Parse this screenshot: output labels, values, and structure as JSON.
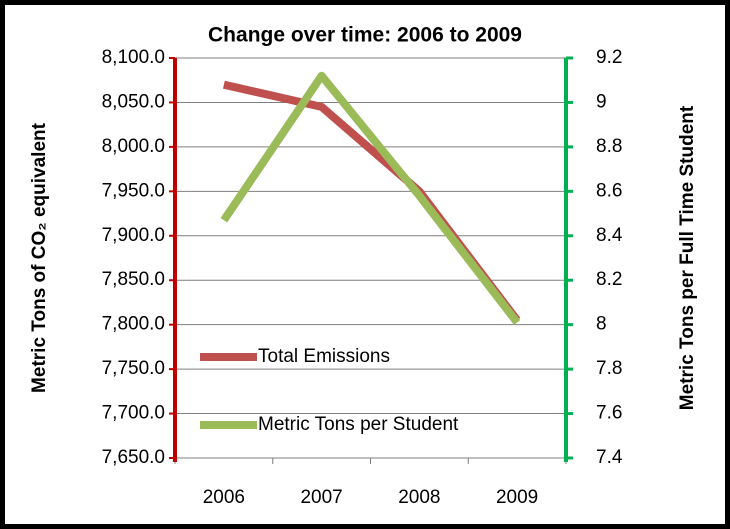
{
  "chart_data": {
    "type": "line",
    "title": "Change over time: 2006 to 2009",
    "y_label": "Metric Tons of CO₂ equivalent",
    "y2_label": "Metric Tons per Full Time Student",
    "categories": [
      "2006",
      "2007",
      "2008",
      "2009"
    ],
    "series": [
      {
        "name": "Total Emissions",
        "color": "#c0504d",
        "values": [
          8070,
          8045,
          7950,
          7805
        ]
      },
      {
        "name": "Metric Tons per Student",
        "color": "#9bbb59",
        "axis": "y2",
        "values": [
          8.47,
          9.12,
          8.58,
          8.01
        ]
      }
    ],
    "ylim": [
      7650,
      8100
    ],
    "yticks": [
      {
        "value": 7650,
        "label": "7,650.0"
      },
      {
        "value": 7700,
        "label": "7,700.0"
      },
      {
        "value": 7750,
        "label": "7,750.0"
      },
      {
        "value": 7800,
        "label": "7,800.0"
      },
      {
        "value": 7850,
        "label": "7,850.0"
      },
      {
        "value": 7900,
        "label": "7,900.0"
      },
      {
        "value": 7950,
        "label": "7,950.0"
      },
      {
        "value": 8000,
        "label": "8,000.0"
      },
      {
        "value": 8050,
        "label": "8,050.0"
      },
      {
        "value": 8100,
        "label": "8,100.0"
      }
    ],
    "y2lim": [
      7.4,
      9.2
    ],
    "y2ticks": [
      7.4,
      7.6,
      7.8,
      8,
      8.2,
      8.4,
      8.6,
      8.8,
      9,
      9.2
    ],
    "y_axis_color": "#c00000",
    "y2_axis_color": "#00b050",
    "grid": true
  }
}
